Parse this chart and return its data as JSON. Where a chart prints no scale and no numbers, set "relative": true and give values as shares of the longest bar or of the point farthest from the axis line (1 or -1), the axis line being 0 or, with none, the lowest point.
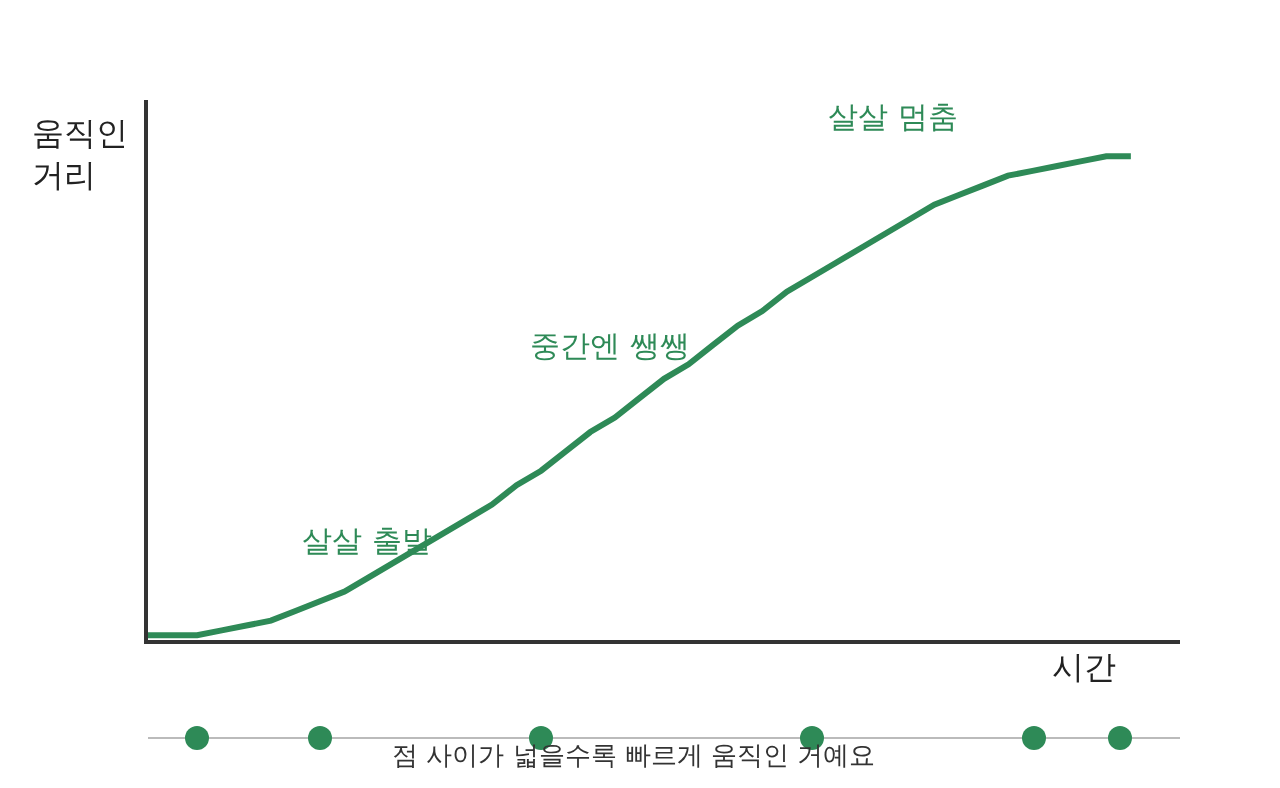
{
  "chart_data": {
    "type": "line",
    "relative": true,
    "color": "#2e8a57",
    "xlabel": "시간",
    "ylabel": "움직인\n거리",
    "categories": [
      null,
      null,
      null,
      null,
      null,
      null,
      null,
      null,
      null,
      null,
      null,
      null,
      null,
      null,
      null,
      null,
      null,
      null,
      null,
      null,
      null,
      null,
      null,
      null,
      null,
      null,
      null,
      null,
      null,
      null,
      null,
      null,
      null,
      null,
      null,
      null,
      null,
      null,
      null,
      null,
      null,
      null,
      null
    ],
    "values": [
      0.01,
      0.01,
      0.01,
      0.02,
      0.03,
      0.04,
      0.06,
      0.08,
      0.1,
      0.13,
      0.16,
      0.19,
      0.22,
      0.25,
      0.28,
      0.32,
      0.35,
      0.39,
      0.43,
      0.46,
      0.5,
      0.54,
      0.57,
      0.61,
      0.65,
      0.68,
      0.72,
      0.75,
      0.78,
      0.81,
      0.84,
      0.87,
      0.9,
      0.92,
      0.94,
      0.96,
      0.97,
      0.98,
      0.99,
      1.0,
      1.0,
      null,
      null
    ],
    "annotations": [
      "살살 출발",
      "중간엔 쌩쌩",
      "살살 멈춤",
      "점 사이가 넓을수록 빠르게 움직인 거예요"
    ]
  }
}
